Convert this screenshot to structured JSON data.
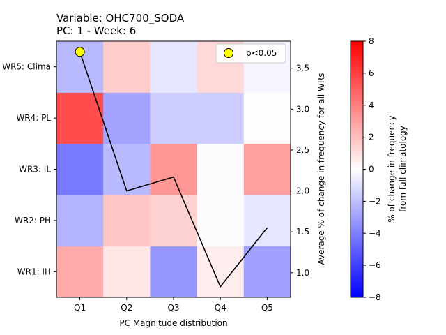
{
  "chart_data": {
    "type": "heatmap",
    "title_line1": "Variable: OHC700_SODA",
    "title_line2": "PC: 1 - Week: 6",
    "xlabel": "PC Magnitude distribution",
    "ylabel_right": "Average % of change in frequency for all WRs",
    "colorbar_label_line1": "% of change in frequency",
    "colorbar_label_line2": "from full climatology",
    "x_categories": [
      "Q1",
      "Q2",
      "Q3",
      "Q4",
      "Q5"
    ],
    "y_categories": [
      "WR1: IH",
      "WR2: PH",
      "WR3: IL",
      "WR4: PL",
      "WR5: Clima"
    ],
    "values": [
      [
        2.7,
        0.8,
        -3.3,
        0.6,
        -3.0
      ],
      [
        -2.4,
        1.8,
        1.4,
        -0.1,
        -0.8
      ],
      [
        -4.2,
        -2.2,
        3.3,
        -0.1,
        3.0
      ],
      [
        5.6,
        -2.9,
        -1.6,
        -1.6,
        0.1
      ],
      [
        -2.2,
        1.6,
        -0.8,
        1.2,
        -0.3
      ]
    ],
    "color_range": [
      -8,
      8
    ],
    "colormap": [
      "#0000ff",
      "#ffffff",
      "#ff0000"
    ],
    "colorbar_ticks": [
      -8,
      -6,
      -4,
      -2,
      0,
      2,
      4,
      6,
      8
    ],
    "line_series": {
      "x": [
        "Q1",
        "Q2",
        "Q3",
        "Q4",
        "Q5"
      ],
      "y": [
        3.7,
        2.0,
        2.17,
        0.83,
        1.55
      ],
      "color": "#000000"
    },
    "right_axis": {
      "ylim": [
        0.7,
        3.83
      ],
      "ticks": [
        1.0,
        1.5,
        2.0,
        2.5,
        3.0,
        3.5
      ],
      "tick_labels": [
        "1.0",
        "1.5",
        "2.0",
        "2.5",
        "3.0",
        "3.5"
      ]
    },
    "significance_markers": [
      {
        "x": "Q1",
        "y": 3.7
      }
    ],
    "marker_color": "#ffff00",
    "legend": {
      "label": "p<0.05",
      "position": "top-right"
    }
  }
}
